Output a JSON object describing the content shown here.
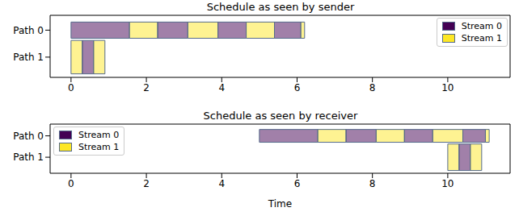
{
  "chart_data": [
    {
      "type": "gantt",
      "title": "Schedule as seen by sender",
      "categories": [
        "Path 0",
        "Path 1"
      ],
      "series": [
        {
          "name": "Stream 0",
          "color": "#440154"
        },
        {
          "name": "Stream 1",
          "color": "#fde725"
        }
      ],
      "segments": [
        {
          "path": 0,
          "stream": 0,
          "start": 0,
          "end": 1.55
        },
        {
          "path": 0,
          "stream": 1,
          "start": 1.55,
          "end": 2.3
        },
        {
          "path": 0,
          "stream": 0,
          "start": 2.3,
          "end": 3.1
        },
        {
          "path": 0,
          "stream": 1,
          "start": 3.1,
          "end": 3.9
        },
        {
          "path": 0,
          "stream": 0,
          "start": 3.9,
          "end": 4.65
        },
        {
          "path": 0,
          "stream": 1,
          "start": 4.65,
          "end": 5.4
        },
        {
          "path": 0,
          "stream": 0,
          "start": 5.4,
          "end": 6.1
        },
        {
          "path": 0,
          "stream": 1,
          "start": 6.1,
          "end": 6.2
        },
        {
          "path": 1,
          "stream": 1,
          "start": 0,
          "end": 0.3
        },
        {
          "path": 1,
          "stream": 0,
          "start": 0.3,
          "end": 0.6
        },
        {
          "path": 1,
          "stream": 1,
          "start": 0.6,
          "end": 0.9
        }
      ],
      "xlim": [
        -0.555,
        11.655
      ],
      "xticks": [
        0,
        2,
        4,
        6,
        8,
        10
      ],
      "legend": "upper right"
    },
    {
      "type": "gantt",
      "title": "Schedule as seen by receiver",
      "xlabel": "Time",
      "categories": [
        "Path 0",
        "Path 1"
      ],
      "series": [
        {
          "name": "Stream 0",
          "color": "#440154"
        },
        {
          "name": "Stream 1",
          "color": "#fde725"
        }
      ],
      "segments": [
        {
          "path": 0,
          "stream": 0,
          "start": 5.0,
          "end": 6.55
        },
        {
          "path": 0,
          "stream": 1,
          "start": 6.55,
          "end": 7.3
        },
        {
          "path": 0,
          "stream": 0,
          "start": 7.3,
          "end": 8.1
        },
        {
          "path": 0,
          "stream": 1,
          "start": 8.1,
          "end": 8.85
        },
        {
          "path": 0,
          "stream": 0,
          "start": 8.85,
          "end": 9.6
        },
        {
          "path": 0,
          "stream": 1,
          "start": 9.6,
          "end": 10.4
        },
        {
          "path": 0,
          "stream": 0,
          "start": 10.4,
          "end": 11.0
        },
        {
          "path": 0,
          "stream": 1,
          "start": 11.0,
          "end": 11.1
        },
        {
          "path": 1,
          "stream": 1,
          "start": 10.0,
          "end": 10.3
        },
        {
          "path": 1,
          "stream": 0,
          "start": 10.3,
          "end": 10.6
        },
        {
          "path": 1,
          "stream": 1,
          "start": 10.6,
          "end": 10.9
        }
      ],
      "xlim": [
        -0.555,
        11.655
      ],
      "xticks": [
        0,
        2,
        4,
        6,
        8,
        10
      ],
      "legend": "upper left"
    }
  ]
}
